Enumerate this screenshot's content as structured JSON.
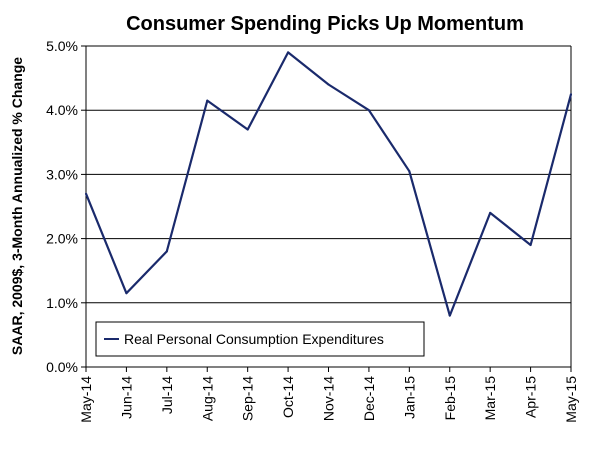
{
  "chart_data": {
    "type": "line",
    "title": "Consumer Spending Picks Up Momentum",
    "xlabel": "",
    "ylabel": "SAAR, 2009$, 3-Month Annualized % Change",
    "categories": [
      "May-14",
      "Jun-14",
      "Jul-14",
      "Aug-14",
      "Sep-14",
      "Oct-14",
      "Nov-14",
      "Dec-14",
      "Jan-15",
      "Feb-15",
      "Mar-15",
      "Apr-15",
      "May-15"
    ],
    "ylim": [
      0.0,
      5.0
    ],
    "yticks": [
      "0.0%",
      "1.0%",
      "2.0%",
      "3.0%",
      "4.0%",
      "5.0%"
    ],
    "grid": "horizontal",
    "legend_position": "bottom-left",
    "series": [
      {
        "name": "Real Personal Consumption Expenditures",
        "color": "#1a2a6c",
        "values": [
          2.7,
          1.15,
          1.8,
          4.15,
          3.7,
          4.9,
          4.4,
          4.0,
          3.05,
          0.8,
          2.4,
          1.9,
          4.25
        ]
      }
    ]
  }
}
